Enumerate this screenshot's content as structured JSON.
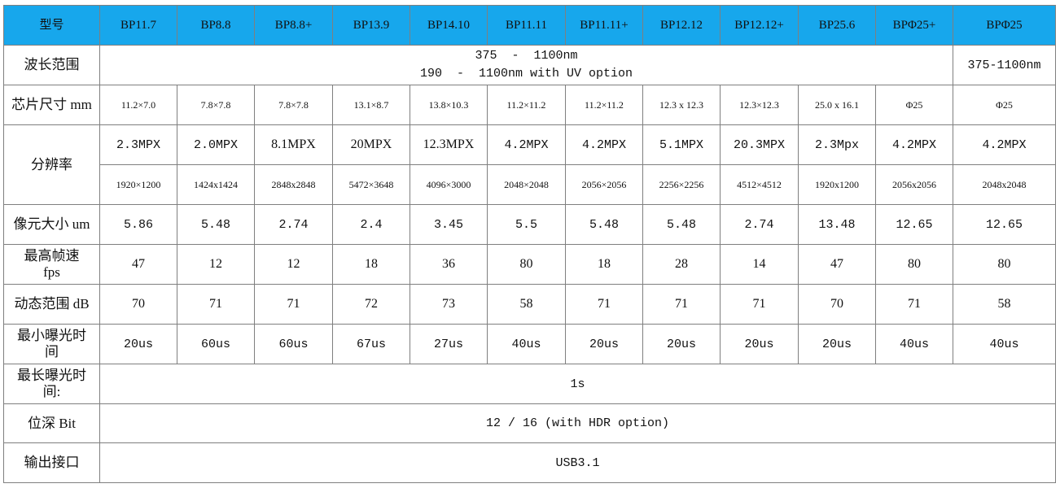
{
  "colors": {
    "header_bg": "#17a7ec",
    "border": "#7f7f7f"
  },
  "header": {
    "label": "型号",
    "models": [
      "BP11.7",
      "BP8.8",
      "BP8.8+",
      "BP13.9",
      "BP14.10",
      "BP11.11",
      "BP11.11+",
      "BP12.12",
      "BP12.12+",
      "BP25.6",
      "BPΦ25+",
      "BPΦ25"
    ]
  },
  "rows": {
    "wavelength": {
      "label": "波长范围",
      "line1": "375  -  1100nm",
      "line2": "190  -  1100nm with UV option",
      "last": "375-1100nm"
    },
    "chip_size": {
      "label": "芯片尺寸 mm",
      "values": [
        "11.2×7.0",
        "7.8×7.8",
        "7.8×7.8",
        "13.1×8.7",
        "13.8×10.3",
        "11.2×11.2",
        "11.2×11.2",
        "12.3 x 12.3",
        "12.3×12.3",
        "25.0 x 16.1",
        "Φ25",
        "Φ25"
      ]
    },
    "resolution": {
      "label": "分辨率",
      "mpx": [
        "2.3MPX",
        "2.0MPX",
        "8.1MPX",
        "20MPX",
        "12.3MPX",
        "4.2MPX",
        "4.2MPX",
        "5.1MPX",
        "20.3MPX",
        "2.3Mpx",
        "4.2MPX",
        "4.2MPX"
      ],
      "pixels": [
        "1920×1200",
        "1424x1424",
        "2848x2848",
        "5472×3648",
        "4096×3000",
        "2048×2048",
        "2056×2056",
        "2256×2256",
        "4512×4512",
        "1920x1200",
        "2056x2056",
        "2048x2048"
      ]
    },
    "pixel_size": {
      "label": "像元大小 um",
      "values": [
        "5.86",
        "5.48",
        "2.74",
        "2.4",
        "3.45",
        "5.5",
        "5.48",
        "5.48",
        "2.74",
        "13.48",
        "12.65",
        "12.65"
      ]
    },
    "max_fps": {
      "label_line1": "最高帧速",
      "label_line2": "fps",
      "values": [
        "47",
        "12",
        "12",
        "18",
        "36",
        "80",
        "18",
        "28",
        "14",
        "47",
        "80",
        "80"
      ]
    },
    "dynamic_range": {
      "label": "动态范围 dB",
      "values": [
        "70",
        "71",
        "71",
        "72",
        "73",
        "58",
        "71",
        "71",
        "71",
        "70",
        "71",
        "58"
      ]
    },
    "min_exposure": {
      "label_line1": "最小曝光时",
      "label_line2": "间",
      "values": [
        "20us",
        "60us",
        "60us",
        "67us",
        "27us",
        "40us",
        "20us",
        "20us",
        "20us",
        "20us",
        "40us",
        "40us"
      ]
    },
    "max_exposure": {
      "label_line1": "最长曝光时",
      "label_line2": "间:",
      "value": "1s"
    },
    "bit_depth": {
      "label": "位深 Bit",
      "value": "12 / 16 (with HDR option)"
    },
    "interface": {
      "label": "输出接口",
      "value": "USB3.1"
    }
  }
}
